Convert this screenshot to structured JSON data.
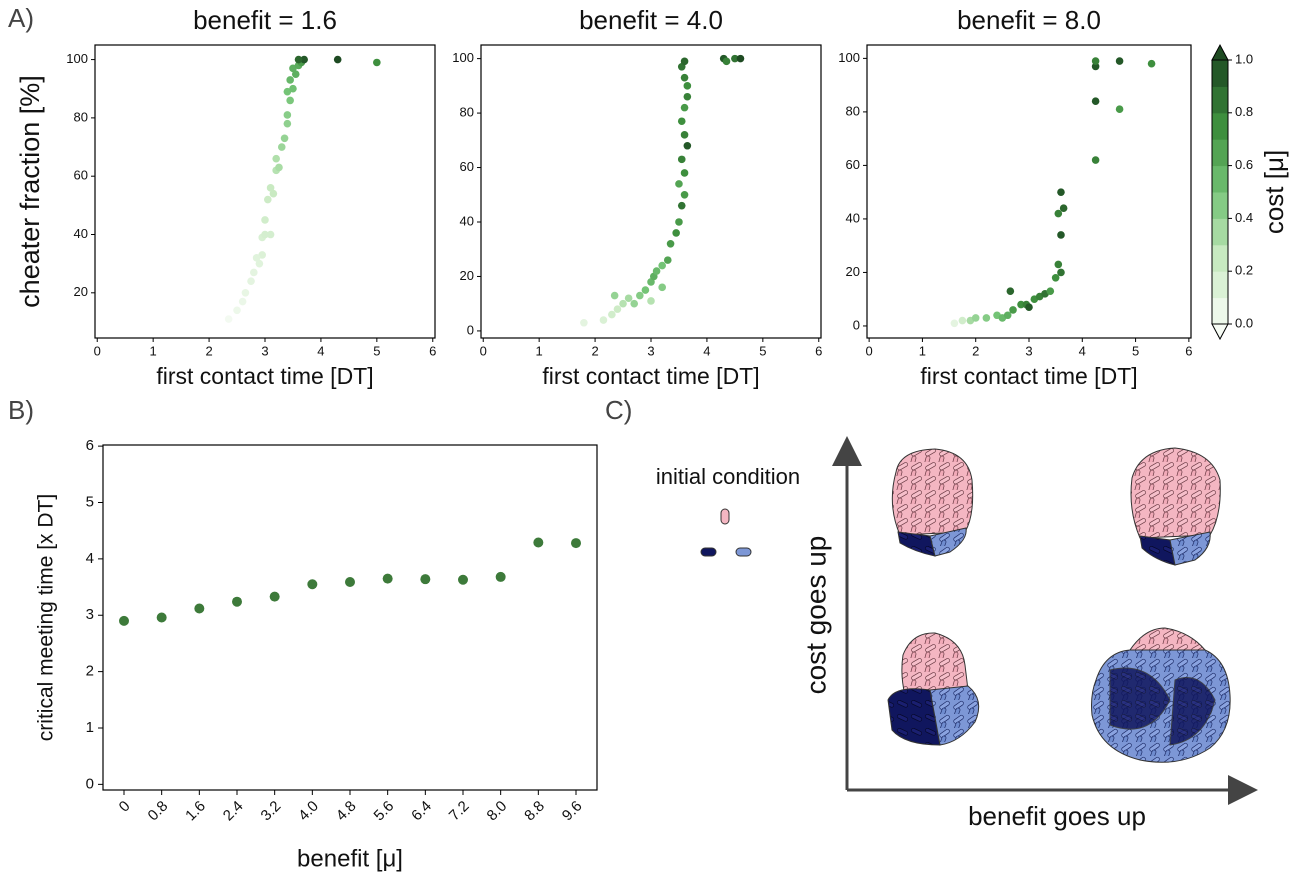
{
  "panel_labels": [
    "A)",
    "B)",
    "C)"
  ],
  "chart_data": [
    {
      "type": "scatter",
      "title": "benefit = 1.6",
      "xlabel": "first contact time [DT]",
      "ylabel": "cheater fraction [%]",
      "xlim": [
        -0.04,
        6.04
      ],
      "ylim": [
        4.5,
        105
      ],
      "xticks": [
        0,
        1,
        2,
        3,
        4,
        5,
        6
      ],
      "yticks": [
        20,
        40,
        60,
        80,
        100
      ],
      "x": [
        2.35,
        2.5,
        2.6,
        2.65,
        2.75,
        2.8,
        2.9,
        2.95,
        2.85,
        2.95,
        3.0,
        3.1,
        3.0,
        3.05,
        3.1,
        3.15,
        3.2,
        3.25,
        3.2,
        3.3,
        3.35,
        3.4,
        3.4,
        3.45,
        3.4,
        3.5,
        3.45,
        3.55,
        3.5,
        3.6,
        3.65,
        3.7,
        4.3,
        5.0,
        3.6
      ],
      "y": [
        11,
        14,
        17,
        20,
        24,
        27,
        30,
        33,
        32,
        39,
        40,
        40,
        45,
        52,
        56,
        54,
        62,
        63,
        66,
        70,
        73,
        78,
        81,
        86,
        89,
        90,
        93,
        95,
        97,
        98,
        99,
        100,
        100,
        99,
        100
      ],
      "cost": [
        0.02,
        0.05,
        0.06,
        0.08,
        0.1,
        0.1,
        0.12,
        0.14,
        0.12,
        0.16,
        0.18,
        0.18,
        0.2,
        0.22,
        0.24,
        0.24,
        0.3,
        0.34,
        0.32,
        0.38,
        0.4,
        0.42,
        0.44,
        0.48,
        0.5,
        0.52,
        0.56,
        0.6,
        0.6,
        0.62,
        0.7,
        0.95,
        1.0,
        0.75,
        0.9
      ]
    },
    {
      "type": "scatter",
      "title": "benefit = 4.0",
      "xlabel": "first contact time [DT]",
      "xlim": [
        -0.04,
        6.04
      ],
      "ylim": [
        -2.6,
        105
      ],
      "xticks": [
        0,
        1,
        2,
        3,
        4,
        5,
        6
      ],
      "yticks": [
        0,
        20,
        40,
        60,
        80,
        100
      ],
      "x": [
        1.8,
        2.15,
        2.3,
        2.4,
        2.5,
        2.35,
        2.6,
        2.7,
        2.8,
        2.9,
        3.0,
        3.05,
        3.1,
        3.2,
        3.3,
        3.2,
        3.0,
        3.35,
        3.45,
        3.5,
        3.55,
        3.6,
        3.5,
        3.6,
        3.55,
        3.65,
        3.6,
        3.55,
        3.6,
        3.65,
        3.65,
        3.6,
        3.55,
        3.6,
        4.3,
        4.35,
        4.5,
        4.6
      ],
      "y": [
        3,
        4,
        6,
        8,
        10,
        13,
        12,
        10,
        13,
        15,
        18,
        20,
        22,
        24,
        26,
        16,
        11,
        32,
        36,
        40,
        46,
        50,
        54,
        58,
        63,
        68,
        72,
        77,
        82,
        86,
        90,
        93,
        97,
        99,
        100,
        99,
        100,
        100
      ],
      "cost": [
        0.1,
        0.15,
        0.2,
        0.22,
        0.3,
        0.4,
        0.35,
        0.4,
        0.45,
        0.5,
        0.55,
        0.6,
        0.55,
        0.5,
        0.65,
        0.45,
        0.3,
        0.7,
        0.75,
        0.7,
        0.85,
        0.7,
        0.65,
        0.75,
        0.8,
        0.95,
        0.8,
        0.75,
        0.7,
        0.8,
        0.75,
        0.8,
        0.85,
        0.9,
        0.95,
        0.8,
        0.85,
        1.0
      ]
    },
    {
      "type": "scatter",
      "title": "benefit = 8.0",
      "xlabel": "first contact time [DT]",
      "xlim": [
        -0.04,
        6.04
      ],
      "ylim": [
        -4.5,
        105
      ],
      "xticks": [
        0,
        1,
        2,
        3,
        4,
        5,
        6
      ],
      "yticks": [
        0,
        20,
        40,
        60,
        80,
        100
      ],
      "x": [
        1.6,
        1.75,
        1.9,
        2.0,
        2.2,
        2.4,
        2.5,
        2.6,
        2.65,
        2.7,
        2.85,
        2.95,
        3.0,
        3.1,
        3.2,
        3.3,
        3.4,
        3.5,
        3.55,
        3.6,
        3.6,
        3.55,
        3.65,
        3.6,
        4.25,
        4.25,
        4.25,
        4.25,
        4.7,
        4.7,
        5.3
      ],
      "y": [
        1,
        2,
        2,
        3,
        3,
        4,
        3,
        4,
        13,
        6,
        8,
        8,
        7,
        10,
        11,
        12,
        13,
        18,
        23,
        20,
        34,
        42,
        44,
        50,
        62,
        84,
        97,
        99,
        99,
        81,
        98
      ],
      "cost": [
        0.1,
        0.2,
        0.35,
        0.4,
        0.45,
        0.5,
        0.55,
        0.6,
        0.9,
        0.7,
        0.75,
        0.8,
        0.95,
        0.75,
        0.8,
        0.85,
        0.7,
        0.75,
        0.8,
        0.85,
        0.95,
        0.8,
        0.9,
        0.95,
        0.8,
        0.95,
        0.95,
        0.8,
        0.95,
        0.7,
        0.75
      ]
    },
    {
      "type": "strip",
      "xlabel": "benefit [μ]",
      "ylabel": "critical meeting time [x DT]",
      "color": "#3d7a3a",
      "categories": [
        "0",
        "0.8",
        "1.6",
        "2.4",
        "3.2",
        "4.0",
        "4.8",
        "5.6",
        "6.4",
        "7.2",
        "8.0",
        "8.8",
        "9.6"
      ],
      "values": [
        2.9,
        2.96,
        3.12,
        3.24,
        3.33,
        3.55,
        3.59,
        3.65,
        3.64,
        3.63,
        3.68,
        4.29,
        4.28
      ],
      "ylim": [
        -0.1,
        6.02
      ],
      "yticks": [
        0,
        1,
        2,
        3,
        4,
        5,
        6
      ]
    }
  ],
  "colorbar": {
    "label": "cost [μ]",
    "clim": [
      0,
      1
    ],
    "ticks": [
      {
        "value": 0,
        "label": "0.0"
      },
      {
        "value": 0.2,
        "label": "0.2"
      },
      {
        "value": 0.4,
        "label": "0.4"
      },
      {
        "value": 0.6,
        "label": "0.6"
      },
      {
        "value": 0.8,
        "label": "0.8"
      },
      {
        "value": 1,
        "label": "1.0"
      }
    ],
    "colors": [
      "#f7fcf5",
      "#c7e9c0",
      "#74c476",
      "#3e8f3e",
      "#1e4a22"
    ]
  },
  "diagram": {
    "initial_condition": "initial condition",
    "y_axis": "cost goes up",
    "x_axis": "benefit goes up"
  }
}
